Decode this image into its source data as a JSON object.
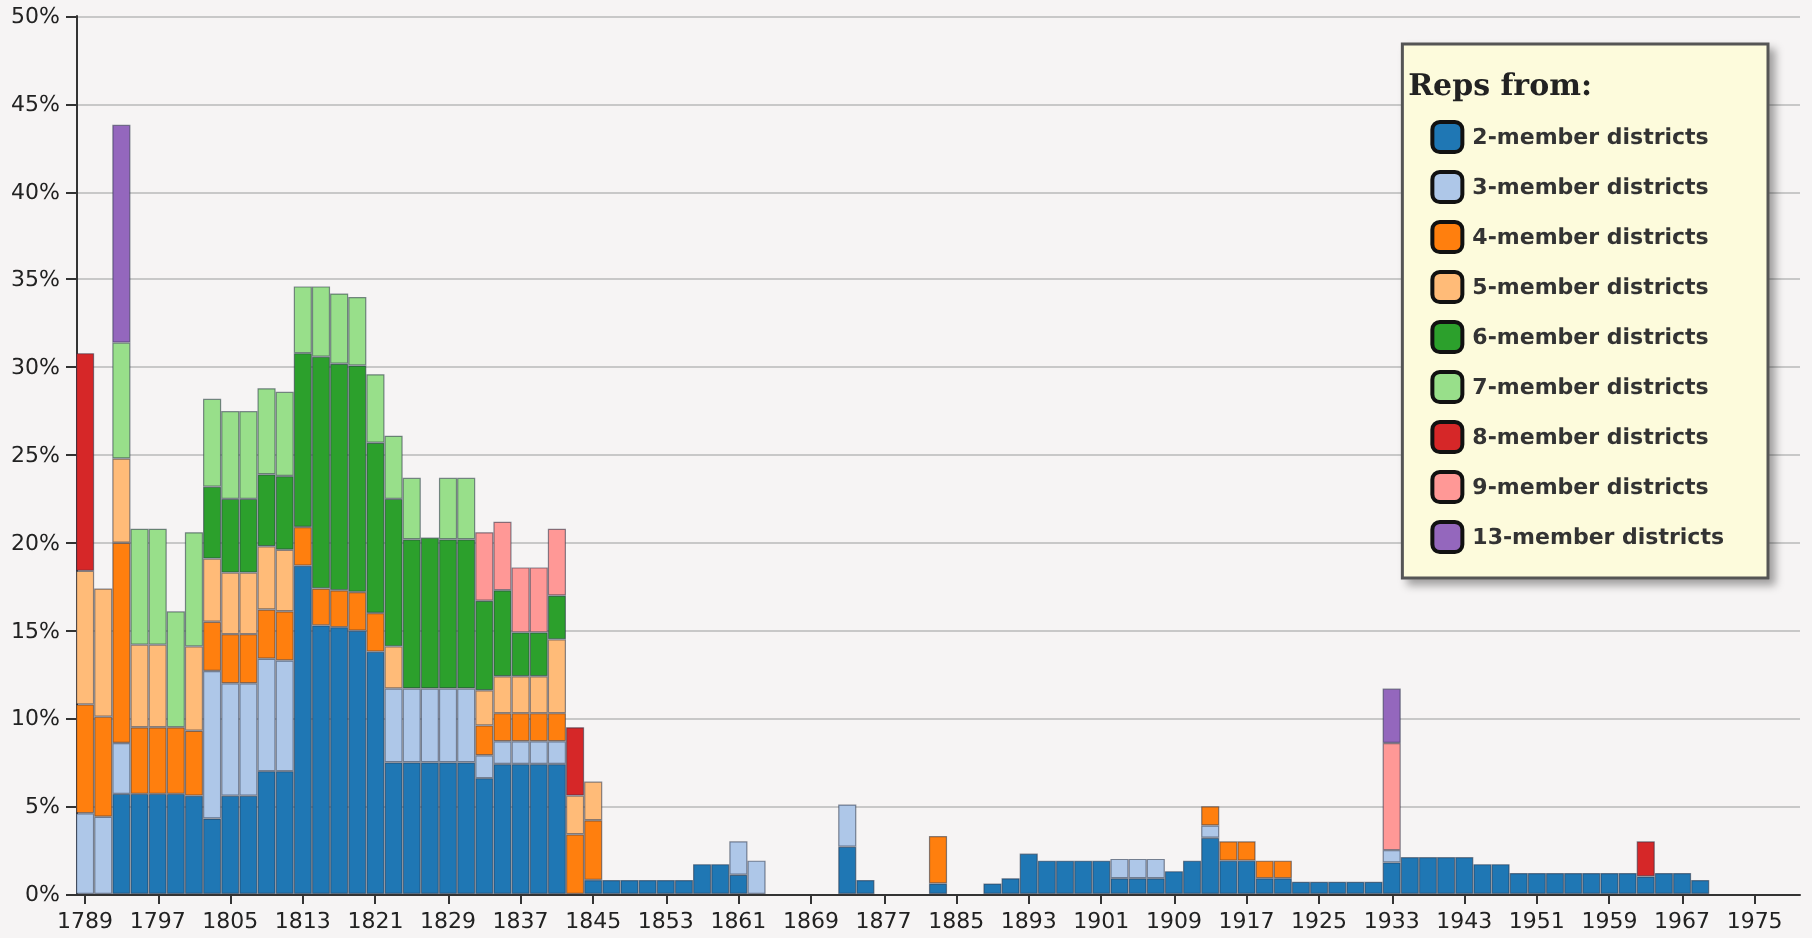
{
  "chart_data": {
    "type": "bar",
    "stacked": true,
    "legend_title": "Reps from:",
    "legend": "top right",
    "grid": "y",
    "ylim": [
      0,
      50
    ],
    "yticks": [
      {
        "value": 0,
        "label": "0%"
      },
      {
        "value": 5,
        "label": "5%"
      },
      {
        "value": 10,
        "label": "10%"
      },
      {
        "value": 15,
        "label": "15%"
      },
      {
        "value": 20,
        "label": "20%"
      },
      {
        "value": 25,
        "label": "25%"
      },
      {
        "value": 30,
        "label": "30%"
      },
      {
        "value": 35,
        "label": "35%"
      },
      {
        "value": 40,
        "label": "40%"
      },
      {
        "value": 45,
        "label": "45%"
      },
      {
        "value": 50,
        "label": "50%"
      }
    ],
    "categories": [
      "1789",
      null,
      null,
      null,
      "1797",
      null,
      null,
      null,
      "1805",
      null,
      null,
      null,
      "1813",
      null,
      null,
      null,
      "1821",
      null,
      null,
      null,
      "1829",
      null,
      null,
      null,
      "1837",
      null,
      null,
      null,
      "1845",
      null,
      null,
      null,
      "1853",
      null,
      null,
      null,
      "1861",
      null,
      null,
      null,
      "1869",
      null,
      null,
      null,
      "1877",
      null,
      null,
      null,
      "1885",
      null,
      null,
      null,
      "1893",
      null,
      null,
      null,
      "1901",
      null,
      null,
      null,
      "1909",
      null,
      null,
      null,
      "1917",
      null,
      null,
      null,
      "1925",
      null,
      null,
      null,
      "1933",
      null,
      null,
      null,
      "1943",
      null,
      null,
      null,
      "1951",
      null,
      null,
      null,
      "1959",
      null,
      null,
      null,
      "1967",
      null,
      null,
      null,
      "1975",
      null,
      null
    ],
    "series": [
      {
        "name": "2-member districts",
        "color": "#1f77b4",
        "values": [
          null,
          null,
          5.7,
          5.7,
          5.7,
          5.7,
          5.6,
          4.3,
          5.6,
          5.6,
          7.0,
          7.0,
          18.7,
          15.3,
          15.2,
          15.0,
          13.8,
          7.5,
          7.5,
          7.5,
          7.5,
          7.5,
          6.6,
          7.4,
          7.4,
          7.4,
          7.4,
          null,
          0.8,
          0.8,
          0.8,
          0.8,
          0.8,
          0.8,
          1.7,
          1.7,
          1.1,
          null,
          null,
          null,
          null,
          null,
          2.7,
          0.8,
          null,
          null,
          null,
          0.6,
          null,
          null,
          0.6,
          0.9,
          2.3,
          1.9,
          1.9,
          1.9,
          1.9,
          0.9,
          0.9,
          0.9,
          1.3,
          1.9,
          3.2,
          1.9,
          1.9,
          0.9,
          0.9,
          0.7,
          0.7,
          0.7,
          0.7,
          0.7,
          1.8,
          2.1,
          2.1,
          2.1,
          2.1,
          1.7,
          1.7,
          1.2,
          1.2,
          1.2,
          1.2,
          1.2,
          1.2,
          1.2,
          1.0,
          1.2,
          1.2,
          0.8,
          null,
          null,
          null,
          null,
          null
        ]
      },
      {
        "name": "3-member districts",
        "color": "#aec7e8",
        "values": [
          4.6,
          4.4,
          2.9,
          null,
          null,
          null,
          null,
          8.4,
          6.4,
          6.4,
          6.4,
          6.3,
          null,
          null,
          null,
          null,
          null,
          4.2,
          4.2,
          4.2,
          4.2,
          4.2,
          1.3,
          1.3,
          1.3,
          1.3,
          1.3,
          null,
          null,
          null,
          null,
          null,
          null,
          null,
          null,
          null,
          1.9,
          1.9,
          null,
          null,
          null,
          null,
          2.4,
          null,
          null,
          null,
          null,
          null,
          null,
          null,
          null,
          null,
          null,
          null,
          null,
          null,
          null,
          1.1,
          1.1,
          1.1,
          null,
          null,
          0.7,
          null,
          null,
          null,
          null,
          null,
          null,
          null,
          null,
          null,
          0.7,
          null,
          null,
          null,
          null,
          null,
          null,
          null,
          null,
          null,
          null,
          null,
          null,
          null,
          null,
          null,
          null,
          null,
          null,
          null,
          null,
          null,
          null
        ]
      },
      {
        "name": "4-member districts",
        "color": "#ff7f0e",
        "values": [
          6.2,
          5.7,
          11.4,
          3.8,
          3.8,
          3.8,
          3.7,
          2.8,
          2.8,
          2.8,
          2.8,
          2.8,
          2.2,
          2.1,
          2.1,
          2.2,
          2.2,
          null,
          null,
          null,
          null,
          null,
          1.7,
          1.6,
          1.6,
          1.6,
          1.6,
          3.4,
          3.4,
          null,
          null,
          null,
          null,
          null,
          null,
          null,
          null,
          null,
          null,
          null,
          null,
          null,
          null,
          null,
          null,
          null,
          null,
          2.7,
          null,
          null,
          null,
          null,
          null,
          null,
          null,
          null,
          null,
          null,
          null,
          null,
          null,
          null,
          1.1,
          1.1,
          1.1,
          1.0,
          1.0,
          null,
          null,
          null,
          null,
          null,
          null,
          null,
          null,
          null,
          null,
          null,
          null,
          null,
          null,
          null,
          null,
          null,
          null,
          null,
          null,
          null,
          null,
          null,
          null,
          null,
          null,
          null,
          null
        ]
      },
      {
        "name": "5-member districts",
        "color": "#ffbb78",
        "values": [
          7.6,
          7.3,
          4.8,
          4.7,
          4.7,
          null,
          4.8,
          3.6,
          3.5,
          3.5,
          3.6,
          3.5,
          null,
          null,
          null,
          null,
          null,
          2.4,
          null,
          null,
          null,
          null,
          2.0,
          2.1,
          2.1,
          2.1,
          4.2,
          2.2,
          2.2,
          null,
          null,
          null,
          null,
          null,
          null,
          null,
          null,
          null,
          null,
          null,
          null,
          null,
          null,
          null,
          null,
          null,
          null,
          null,
          null,
          null,
          null,
          null,
          null,
          null,
          null,
          null,
          null,
          null,
          null,
          null,
          null,
          null,
          null,
          null,
          null,
          null,
          null,
          null,
          null,
          null,
          null,
          null,
          null,
          null,
          null,
          null,
          null,
          null,
          null,
          null,
          null,
          null,
          null,
          null,
          null,
          null,
          null,
          null,
          null,
          null,
          null,
          null,
          null,
          null,
          null
        ]
      },
      {
        "name": "6-member districts",
        "color": "#2ca02c",
        "values": [
          null,
          null,
          null,
          null,
          null,
          null,
          null,
          4.1,
          4.2,
          4.2,
          4.1,
          4.2,
          9.9,
          13.2,
          12.9,
          12.9,
          9.7,
          8.4,
          8.5,
          8.6,
          8.5,
          8.5,
          5.1,
          4.9,
          2.5,
          2.5,
          2.5,
          null,
          null,
          null,
          null,
          null,
          null,
          null,
          null,
          null,
          null,
          null,
          null,
          null,
          null,
          null,
          null,
          null,
          null,
          null,
          null,
          null,
          null,
          null,
          null,
          null,
          null,
          null,
          null,
          null,
          null,
          null,
          null,
          null,
          null,
          null,
          null,
          null,
          null,
          null,
          null,
          null,
          null,
          null,
          null,
          null,
          null,
          null,
          null,
          null,
          null,
          null,
          null,
          null,
          null,
          null,
          null,
          null,
          null,
          null,
          null,
          null,
          null,
          null,
          null,
          null,
          null,
          null,
          null
        ]
      },
      {
        "name": "7-member districts",
        "color": "#98df8a",
        "values": [
          null,
          null,
          6.6,
          6.6,
          6.6,
          6.6,
          6.5,
          5.0,
          5.0,
          5.0,
          4.9,
          4.8,
          3.8,
          4.0,
          4.0,
          3.9,
          3.9,
          3.6,
          3.5,
          null,
          3.5,
          3.5,
          null,
          null,
          null,
          null,
          null,
          null,
          null,
          null,
          null,
          null,
          null,
          null,
          null,
          null,
          null,
          null,
          null,
          null,
          null,
          null,
          null,
          null,
          null,
          null,
          null,
          null,
          null,
          null,
          null,
          null,
          null,
          null,
          null,
          null,
          null,
          null,
          null,
          null,
          null,
          null,
          null,
          null,
          null,
          null,
          null,
          null,
          null,
          null,
          null,
          null,
          null,
          null,
          null,
          null,
          null,
          null,
          null,
          null,
          null,
          null,
          null,
          null,
          null,
          null,
          null,
          null,
          null,
          null,
          null,
          null,
          null,
          null,
          null
        ]
      },
      {
        "name": "8-member districts",
        "color": "#d62728",
        "values": [
          12.4,
          null,
          null,
          null,
          null,
          null,
          null,
          null,
          null,
          null,
          null,
          null,
          null,
          null,
          null,
          null,
          null,
          null,
          null,
          null,
          null,
          null,
          null,
          null,
          null,
          null,
          null,
          3.9,
          null,
          null,
          null,
          null,
          null,
          null,
          null,
          null,
          null,
          null,
          null,
          null,
          null,
          null,
          null,
          null,
          null,
          null,
          null,
          null,
          null,
          null,
          null,
          null,
          null,
          null,
          null,
          null,
          null,
          null,
          null,
          null,
          null,
          null,
          null,
          null,
          null,
          null,
          null,
          null,
          null,
          null,
          null,
          null,
          null,
          null,
          null,
          null,
          null,
          null,
          null,
          null,
          null,
          null,
          null,
          null,
          null,
          null,
          2.0,
          null,
          null,
          null,
          null,
          null,
          null,
          null,
          null
        ]
      },
      {
        "name": "9-member districts",
        "color": "#ff9896",
        "values": [
          null,
          null,
          null,
          null,
          null,
          null,
          null,
          null,
          null,
          null,
          null,
          null,
          null,
          null,
          null,
          null,
          null,
          null,
          null,
          null,
          null,
          null,
          3.9,
          3.9,
          3.7,
          3.7,
          3.8,
          null,
          null,
          null,
          null,
          null,
          null,
          null,
          null,
          null,
          null,
          null,
          null,
          null,
          null,
          null,
          null,
          null,
          null,
          null,
          null,
          null,
          null,
          null,
          null,
          null,
          null,
          null,
          null,
          null,
          null,
          null,
          null,
          null,
          null,
          null,
          null,
          null,
          null,
          null,
          null,
          null,
          null,
          null,
          null,
          null,
          6.1,
          null,
          null,
          null,
          null,
          null,
          null,
          null,
          null,
          null,
          null,
          null,
          null,
          null,
          null,
          null,
          null,
          null,
          null,
          null,
          null,
          null,
          null
        ]
      },
      {
        "name": "13-member districts",
        "color": "#9467bd",
        "values": [
          null,
          null,
          12.4,
          null,
          null,
          null,
          null,
          null,
          null,
          null,
          null,
          null,
          null,
          null,
          null,
          null,
          null,
          null,
          null,
          null,
          null,
          null,
          null,
          null,
          null,
          null,
          null,
          null,
          null,
          null,
          null,
          null,
          null,
          null,
          null,
          null,
          null,
          null,
          null,
          null,
          null,
          null,
          null,
          null,
          null,
          null,
          null,
          null,
          null,
          null,
          null,
          null,
          null,
          null,
          null,
          null,
          null,
          null,
          null,
          null,
          null,
          null,
          null,
          null,
          null,
          null,
          null,
          null,
          null,
          null,
          null,
          null,
          3.1,
          null,
          null,
          null,
          null,
          null,
          null,
          null,
          null,
          null,
          null,
          null,
          null,
          null,
          null,
          null,
          null,
          null,
          null,
          null,
          null,
          null,
          null
        ]
      }
    ]
  }
}
